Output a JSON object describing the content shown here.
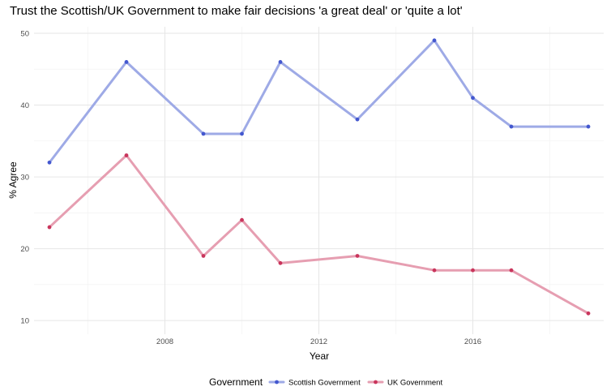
{
  "chart_data": {
    "type": "line",
    "title": "Trust the Scottish/UK Government to make fair decisions 'a great deal' or 'quite a lot'",
    "xlabel": "Year",
    "ylabel": "% Agree",
    "xlim": [
      2004.6,
      2019.4
    ],
    "ylim": [
      8.1,
      50.9
    ],
    "x_ticks": [
      2008,
      2012,
      2016
    ],
    "y_ticks": [
      10,
      20,
      30,
      40,
      50
    ],
    "x_minor_ticks": [
      2006,
      2010,
      2014,
      2018
    ],
    "y_minor_ticks": [
      15,
      25,
      35,
      45
    ],
    "grid": true,
    "legend": {
      "title": "Government",
      "position": "bottom"
    },
    "series": [
      {
        "name": "Scottish Government",
        "line_color": "#9eaae6",
        "point_color": "#4357cf",
        "x": [
          2005,
          2007,
          2009,
          2010,
          2011,
          2013,
          2015,
          2016,
          2017,
          2019
        ],
        "values": [
          32,
          46,
          36,
          36,
          46,
          38,
          49,
          41,
          37,
          37
        ]
      },
      {
        "name": "UK Government",
        "line_color": "#e69eb1",
        "point_color": "#c9355c",
        "x": [
          2005,
          2007,
          2009,
          2010,
          2011,
          2013,
          2015,
          2016,
          2017,
          2019
        ],
        "values": [
          23,
          33,
          19,
          24,
          18,
          19,
          17,
          17,
          17,
          11
        ]
      }
    ]
  }
}
